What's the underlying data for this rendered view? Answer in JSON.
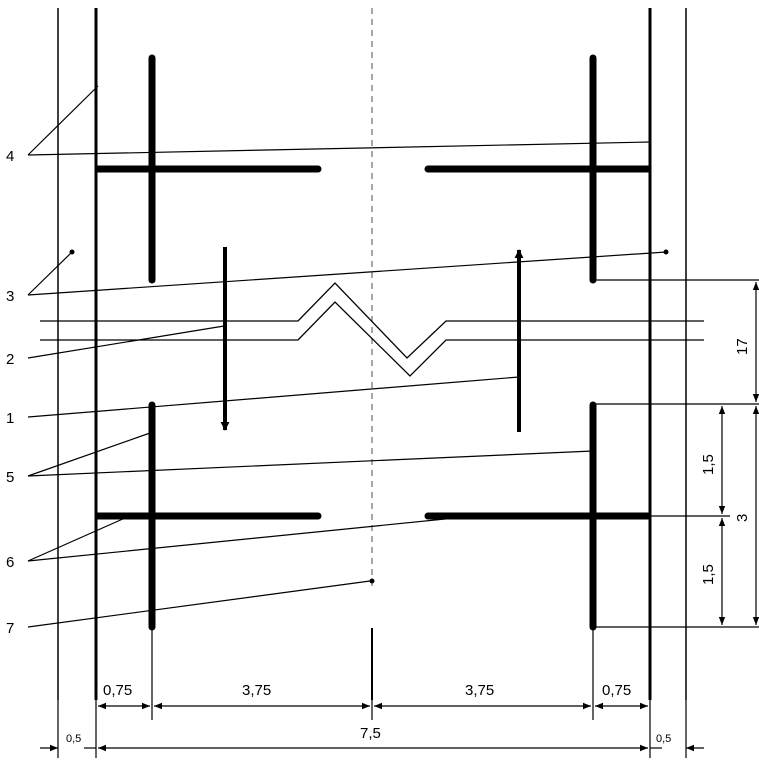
{
  "colors": {
    "ink": "#000000",
    "axis": "#8a8a8a",
    "background": "#ffffff"
  },
  "callouts": [
    "1",
    "2",
    "3",
    "4",
    "5",
    "6",
    "7"
  ],
  "dimensions": {
    "shoulder_left": "0,5",
    "shoulder_right": "0,5",
    "edge_left": "0,75",
    "lane_left": "3,75",
    "lane_right": "3,75",
    "edge_right": "0,75",
    "total": "7,5",
    "gap": "17",
    "half_upper": "1,5",
    "half_lower": "1,5",
    "marker_length": "3"
  }
}
